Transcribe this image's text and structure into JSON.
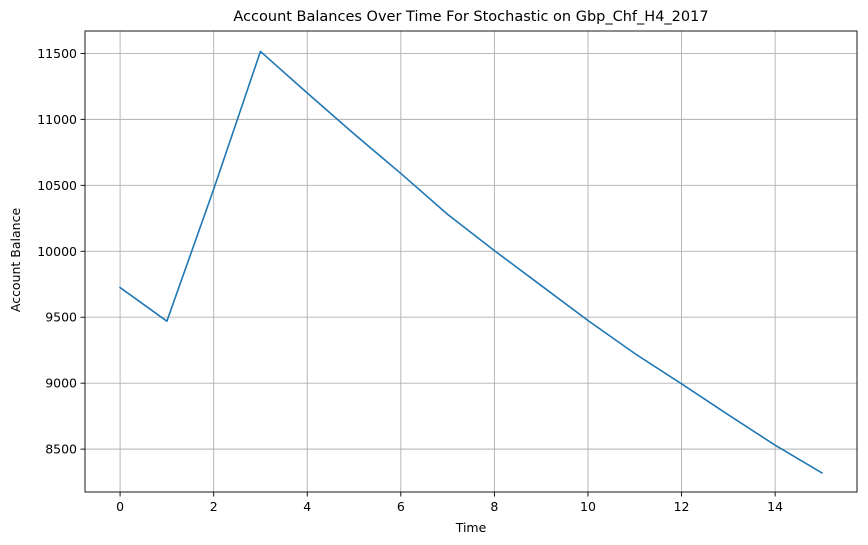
{
  "chart_data": {
    "type": "line",
    "title": "Account Balances Over Time For Stochastic on Gbp_Chf_H4_2017",
    "xlabel": "Time",
    "ylabel": "Account Balance",
    "xlim": [
      -0.75,
      15.75
    ],
    "ylim": [
      8175,
      11670
    ],
    "x_ticks": [
      0,
      2,
      4,
      6,
      8,
      10,
      12,
      14
    ],
    "y_ticks": [
      8500,
      9000,
      9500,
      10000,
      10500,
      11000,
      11500
    ],
    "grid": true,
    "series": [
      {
        "color": "#1f77b4",
        "x": [
          0,
          1,
          2,
          3,
          4,
          5,
          6,
          7,
          8,
          9,
          10,
          11,
          12,
          13,
          14,
          15
        ],
        "y": [
          9725,
          9470,
          10470,
          11515,
          11200,
          10890,
          10590,
          10280,
          10005,
          9740,
          9475,
          9225,
          8995,
          8760,
          8530,
          8320
        ]
      }
    ]
  }
}
